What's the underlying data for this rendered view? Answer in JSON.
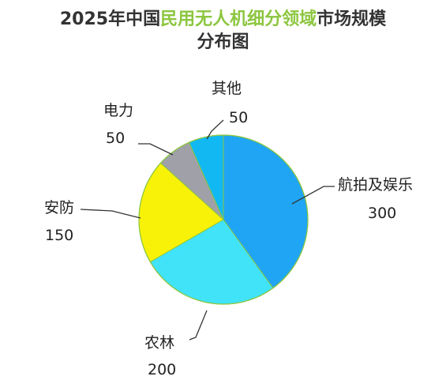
{
  "title": {
    "line1_prefix": "2025年中国",
    "line1_highlight": "民用无人机细分领域",
    "line1_suffix": "市场规模",
    "line2": "分布图"
  },
  "colors": {
    "title_text": "#333333",
    "title_highlight": "#8cc63f",
    "pie_border": "#8cc63f"
  },
  "chart_data": {
    "type": "pie",
    "title": "2025年中国民用无人机细分领域市场规模分布图",
    "start_angle_deg": 0,
    "direction": "clockwise",
    "slices": [
      {
        "label": "航拍及娱乐",
        "value": 300,
        "value_label": "300",
        "color": "#1fa5f3"
      },
      {
        "label": "农林",
        "value": 200,
        "value_label": "200",
        "color": "#40e3f8"
      },
      {
        "label": "安防",
        "value": 150,
        "value_label": "150",
        "color": "#f8f208"
      },
      {
        "label": "电力",
        "value": 50,
        "value_label": "50",
        "color": "#a0a0a8"
      },
      {
        "label": "其他",
        "value": 50,
        "value_label": "50",
        "color": "#12b8f2"
      }
    ]
  }
}
